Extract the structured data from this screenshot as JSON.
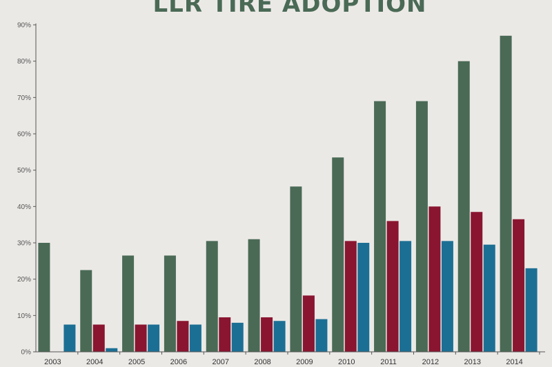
{
  "colors": {
    "background": "#ebe9e6",
    "title": "#4a6a55",
    "series": [
      "#4a6a55",
      "#8a1530",
      "#1c6f94"
    ],
    "grid": "#c9c7c4",
    "axis": "#555555"
  },
  "chart_data": {
    "type": "bar",
    "title": "LLR TIRE ADOPTION",
    "xlabel": "",
    "ylabel": "",
    "ylim": [
      0,
      90
    ],
    "yticks": [
      "0%",
      "10%",
      "20%",
      "30%",
      "40%",
      "50%",
      "60%",
      "70%",
      "80%",
      "90%"
    ],
    "grid": false,
    "legend": "none",
    "categories": [
      "2003",
      "2004",
      "2005",
      "2006",
      "2007",
      "2008",
      "2009",
      "2010",
      "2011",
      "2012",
      "2013",
      "2014"
    ],
    "series": [
      {
        "values": [
          30,
          22.5,
          26.5,
          26.5,
          30.5,
          31,
          45.5,
          53.5,
          69,
          69,
          80,
          87
        ]
      },
      {
        "values": [
          0,
          7.5,
          7.5,
          8.5,
          9.5,
          9.5,
          15.5,
          30.5,
          36,
          40,
          38.5,
          36.5
        ]
      },
      {
        "values": [
          7.5,
          1,
          7.5,
          7.5,
          8,
          8.5,
          9,
          30,
          30.5,
          30.5,
          29.5,
          23
        ]
      }
    ]
  }
}
